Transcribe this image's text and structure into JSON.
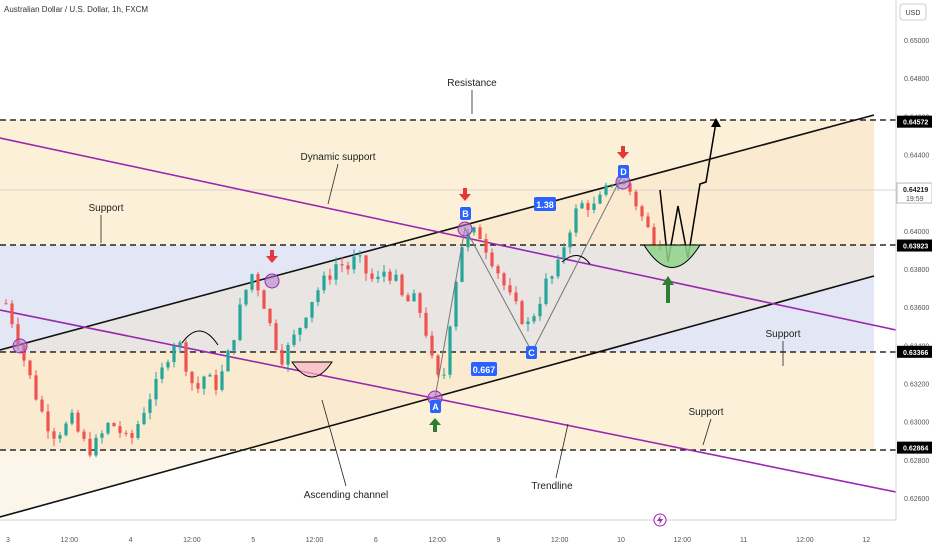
{
  "header": {
    "title": "Australian Dollar / U.S. Dollar, 1h, FXCM"
  },
  "price_scale": {
    "currency": "USD",
    "ticks": [
      "0.65000",
      "0.64800",
      "0.64600",
      "0.64400",
      "0.64200",
      "0.64000",
      "0.63800",
      "0.63600",
      "0.63400",
      "0.63200",
      "0.63000",
      "0.62800",
      "0.62600"
    ],
    "tags": [
      {
        "value": 0.64572,
        "label": "0.64572",
        "kind": "level"
      },
      {
        "value": 0.64219,
        "label": "0.64219",
        "sub": "19:59",
        "kind": "current"
      },
      {
        "value": 0.63923,
        "label": "0.63923",
        "kind": "level"
      },
      {
        "value": 0.63366,
        "label": "0.63366",
        "kind": "level"
      },
      {
        "value": 0.62864,
        "label": "0.62864",
        "kind": "level"
      }
    ]
  },
  "time_axis": {
    "ticks": [
      "3",
      "12:00",
      "4",
      "12:00",
      "5",
      "12:00",
      "6",
      "12:00",
      "9",
      "12:00",
      "10",
      "12:00",
      "11",
      "12:00",
      "12"
    ]
  },
  "annotations": {
    "resistance": "Resistance",
    "dynamic_support": "Dynamic support",
    "support_left": "Support",
    "support_right": "Support",
    "support_bottom": "Support",
    "ascending_channel": "Ascending channel",
    "trendline": "Trendline",
    "label_a": "A",
    "label_b": "B",
    "label_c": "C",
    "label_d": "D",
    "ratio_1": "1.38",
    "ratio_2": "0.667"
  },
  "colors": {
    "bull": "#26a69a",
    "bear": "#ef5350",
    "purple_line": "#9c27b0",
    "channel": "#000000",
    "zone_orange": "#fbe3b8",
    "zone_blue": "#dfe3f4",
    "badge_blue": "#2962ff",
    "arrow_red": "#e53935",
    "arrow_green": "#2e7d32"
  },
  "chart_data": {
    "type": "candlestick",
    "title": "Australian Dollar / U.S. Dollar, 1h, FXCM",
    "xlabel": "",
    "ylabel": "USD",
    "ylim": [
      0.625,
      0.6515
    ],
    "grid": false,
    "levels": [
      0.64572,
      0.63923,
      0.63366,
      0.62864
    ],
    "series": [
      {
        "name": "AUDUSD",
        "close_path": [
          0.6362,
          0.6348,
          0.6331,
          0.6316,
          0.6302,
          0.6294,
          0.6296,
          0.6301,
          0.629,
          0.6285,
          0.6292,
          0.63,
          0.6295,
          0.6288,
          0.63,
          0.6312,
          0.632,
          0.6334,
          0.6345,
          0.633,
          0.6315,
          0.6325,
          0.6318,
          0.6327,
          0.6345,
          0.6365,
          0.6378,
          0.6366,
          0.6348,
          0.6333,
          0.634,
          0.635,
          0.6362,
          0.637,
          0.6376,
          0.6384,
          0.638,
          0.6386,
          0.6378,
          0.6372,
          0.638,
          0.6375,
          0.6362,
          0.6364,
          0.6355,
          0.633,
          0.6316,
          0.636,
          0.6392,
          0.6399,
          0.6398,
          0.6388,
          0.6378,
          0.6366,
          0.6358,
          0.635,
          0.636,
          0.6373,
          0.6377,
          0.6395,
          0.6409,
          0.6415,
          0.6412,
          0.6418,
          0.6427,
          0.6425,
          0.642,
          0.6408,
          0.6398,
          0.6394
        ]
      }
    ]
  }
}
